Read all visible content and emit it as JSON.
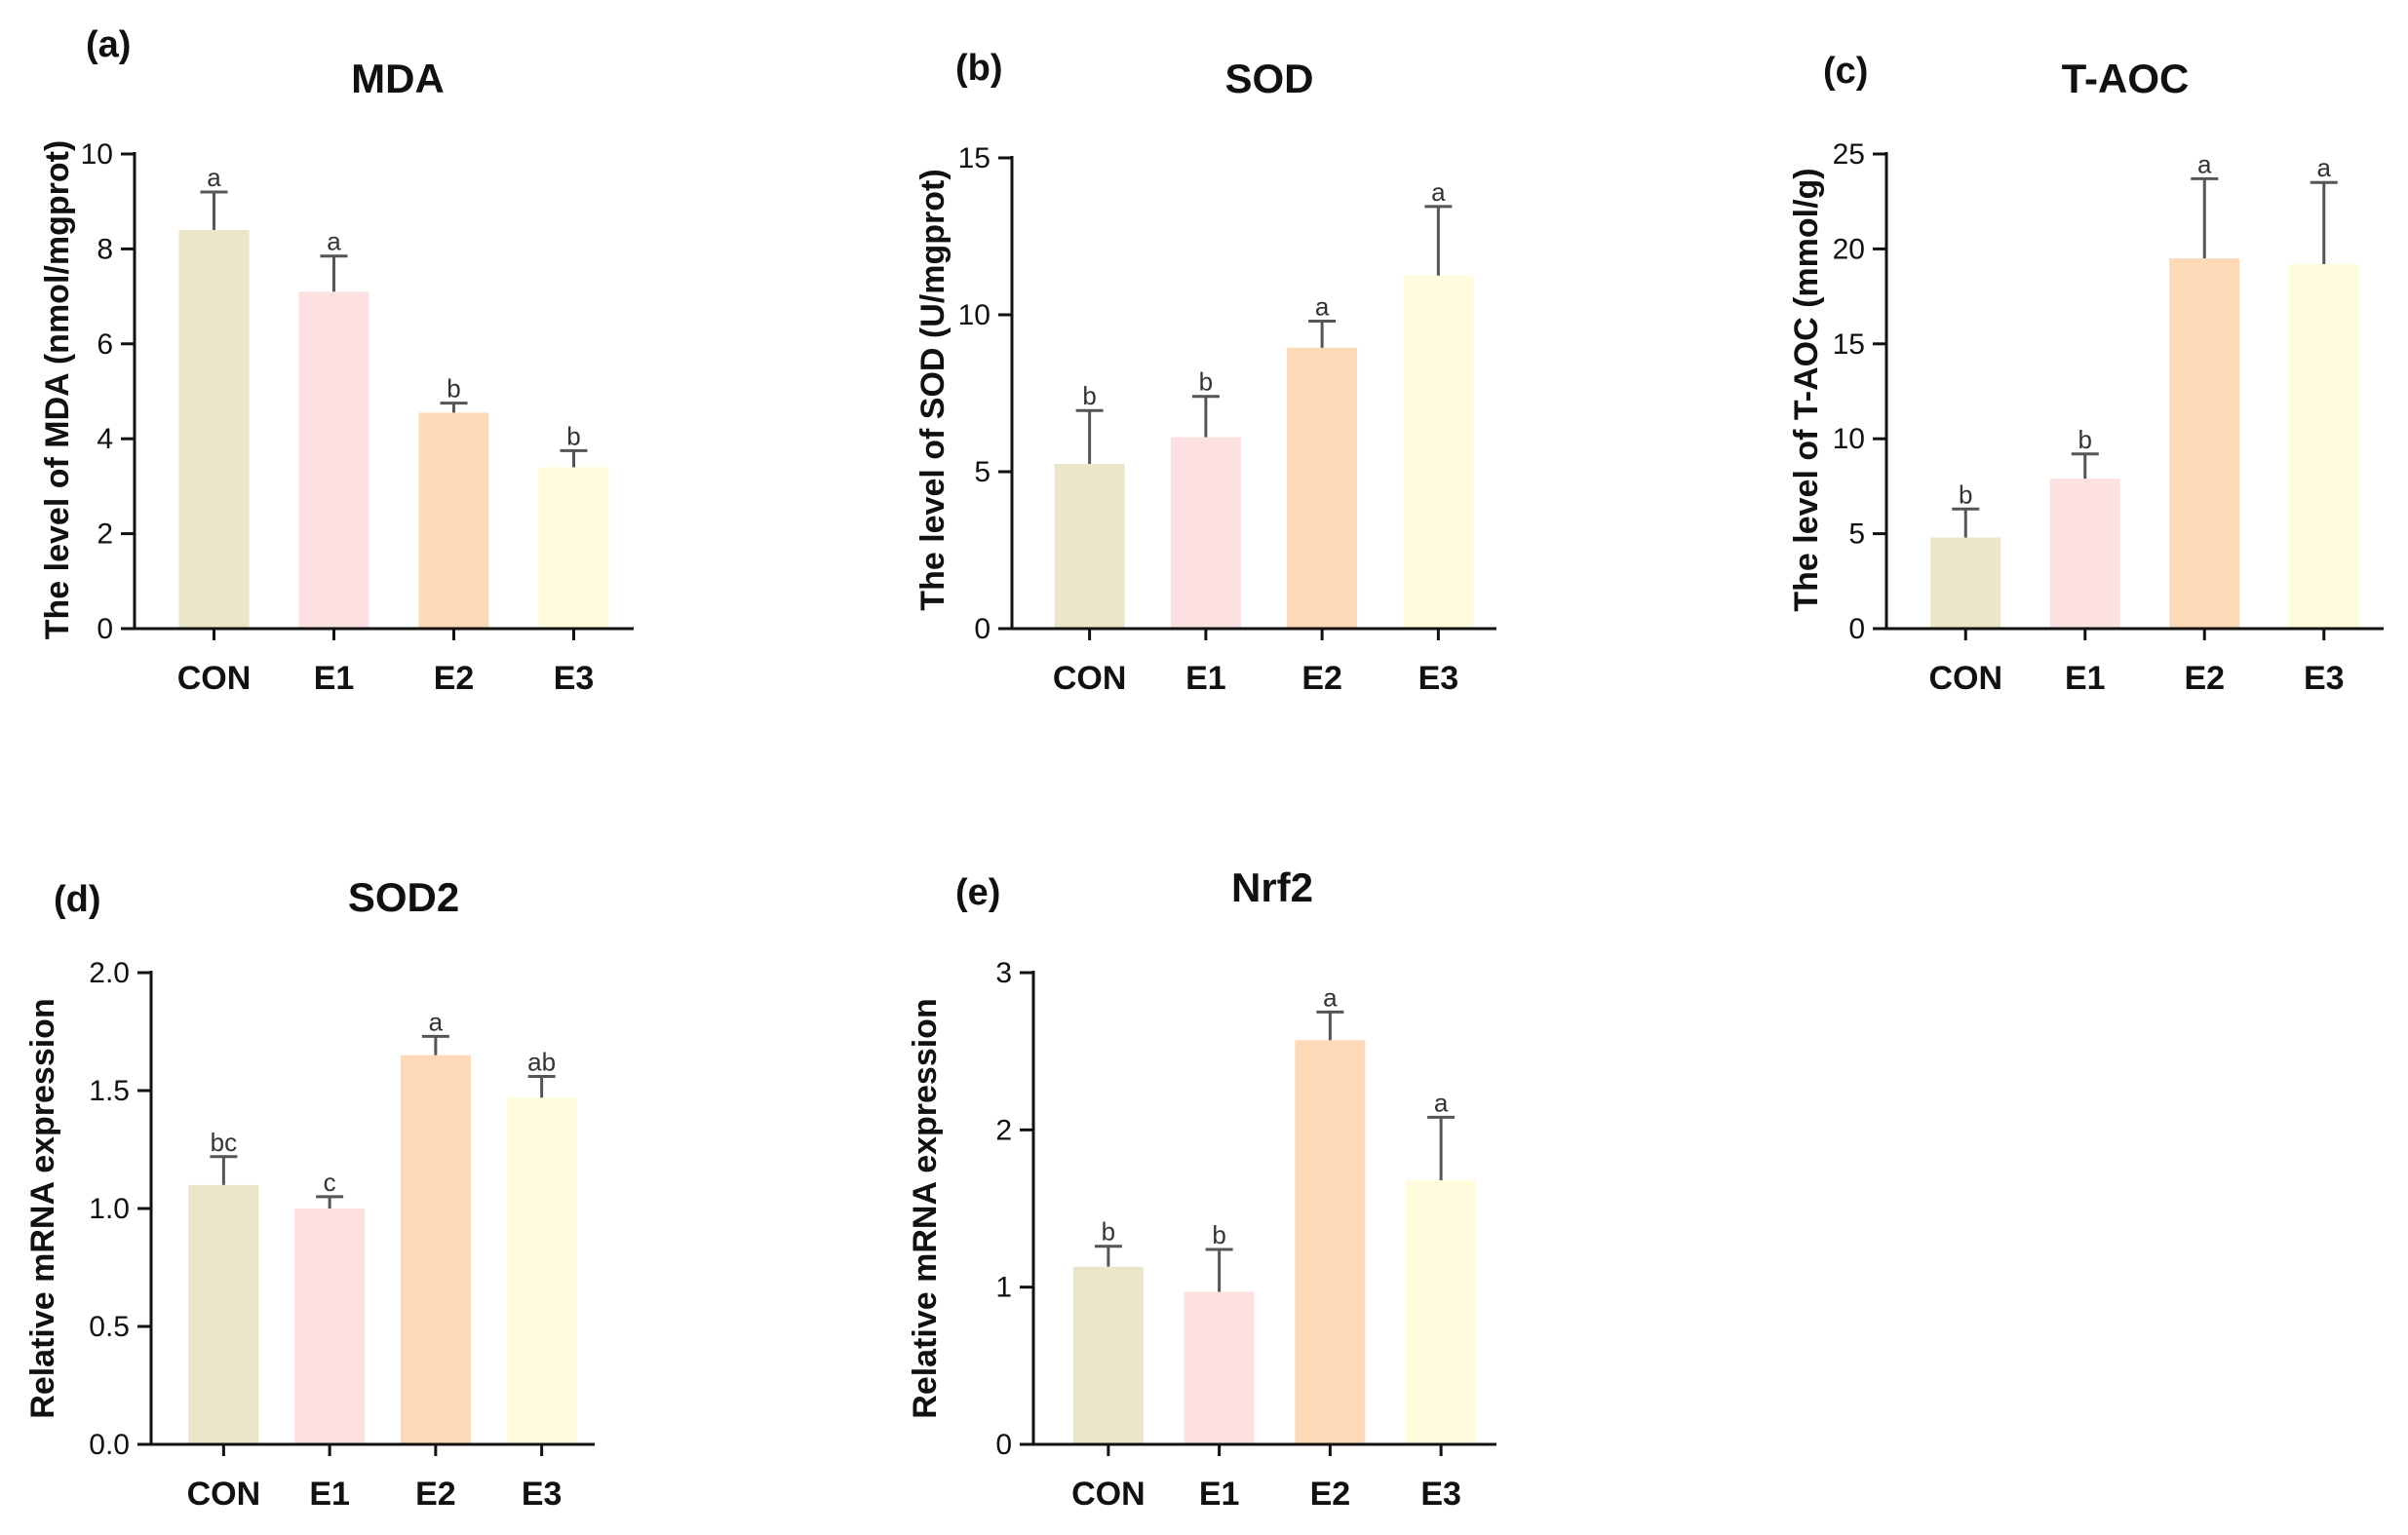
{
  "colors": {
    "CON": "#ebe5c9",
    "E1": "#fde0e2",
    "E2": "#fed9b8",
    "E3": "#fefcdc",
    "axis": "#111111",
    "error_bar": "#555555"
  },
  "chart_data": [
    {
      "type": "bar",
      "panel": "(a)",
      "title": "MDA",
      "ylabel": "The level of MDA (nmol/mgprot)",
      "xlabel": "",
      "categories": [
        "CON",
        "E1",
        "E2",
        "E3"
      ],
      "values": [
        8.4,
        7.1,
        4.55,
        3.4
      ],
      "errors": [
        0.8,
        0.75,
        0.2,
        0.35
      ],
      "labels": [
        "a",
        "a",
        "b",
        "b"
      ],
      "ylim": [
        0,
        10
      ],
      "yticks": [
        "0",
        "2",
        "4",
        "6",
        "8",
        "10"
      ]
    },
    {
      "type": "bar",
      "panel": "(b)",
      "title": "SOD",
      "ylabel": "The level of SOD (U/mgprot)",
      "xlabel": "",
      "categories": [
        "CON",
        "E1",
        "E2",
        "E3"
      ],
      "values": [
        5.25,
        6.1,
        8.95,
        11.25
      ],
      "errors": [
        1.7,
        1.3,
        0.85,
        2.2
      ],
      "labels": [
        "b",
        "b",
        "a",
        "a"
      ],
      "ylim": [
        0,
        15
      ],
      "yticks": [
        "0",
        "5",
        "10",
        "15"
      ]
    },
    {
      "type": "bar",
      "panel": "(c)",
      "title": "T-AOC",
      "ylabel": "The level of T-AOC (mmol/g)",
      "xlabel": "",
      "categories": [
        "CON",
        "E1",
        "E2",
        "E3"
      ],
      "values": [
        4.8,
        7.9,
        19.5,
        19.2
      ],
      "errors": [
        1.5,
        1.3,
        4.2,
        4.3
      ],
      "labels": [
        "b",
        "b",
        "a",
        "a"
      ],
      "ylim": [
        0,
        25
      ],
      "yticks": [
        "0",
        "5",
        "10",
        "15",
        "20",
        "25"
      ]
    },
    {
      "type": "bar",
      "panel": "(d)",
      "title": "SOD2",
      "ylabel": "Relative mRNA expression",
      "xlabel": "",
      "categories": [
        "CON",
        "E1",
        "E2",
        "E3"
      ],
      "values": [
        1.1,
        1.0,
        1.65,
        1.47
      ],
      "errors": [
        0.12,
        0.05,
        0.08,
        0.09
      ],
      "labels": [
        "bc",
        "c",
        "a",
        "ab"
      ],
      "ylim": [
        0,
        2.0
      ],
      "yticks": [
        "0.0",
        "0.5",
        "1.0",
        "1.5",
        "2.0"
      ]
    },
    {
      "type": "bar",
      "panel": "(e)",
      "title": "Nrf2",
      "ylabel": "Relative mRNA expression",
      "xlabel": "",
      "categories": [
        "CON",
        "E1",
        "E2",
        "E3"
      ],
      "values": [
        1.13,
        0.97,
        2.57,
        1.68
      ],
      "errors": [
        0.13,
        0.27,
        0.18,
        0.4
      ],
      "labels": [
        "b",
        "b",
        "a",
        "a"
      ],
      "ylim": [
        0,
        3
      ],
      "yticks": [
        "0",
        "1",
        "2",
        "3"
      ]
    }
  ]
}
